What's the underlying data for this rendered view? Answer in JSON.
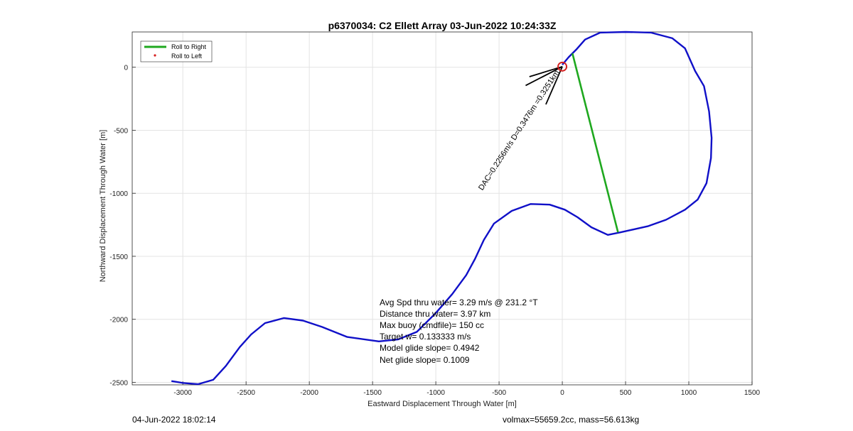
{
  "chart_data": {
    "type": "line",
    "title": "p6370034: C2 Ellett Array 03-Jun-2022 10:24:33Z",
    "xlabel": "Eastward Displacement Through Water [m]",
    "ylabel": "Northward Displacement Through Water [m]",
    "xlim": [
      -3400,
      1500
    ],
    "ylim": [
      -2520,
      280
    ],
    "xticks": [
      -3000,
      -2500,
      -2000,
      -1500,
      -1000,
      -500,
      0,
      500,
      1000,
      1500
    ],
    "yticks": [
      -2500,
      -2000,
      -1500,
      -1000,
      -500,
      0
    ],
    "grid": true,
    "legend": {
      "placement": "top-left",
      "entries": [
        {
          "label": "Roll to Right",
          "color": "#1fa81f",
          "marker": "line"
        },
        {
          "label": "Roll to Left",
          "color": "#d62020",
          "marker": "dot"
        }
      ]
    },
    "series": [
      {
        "color": "#1010c8",
        "points": [
          [
            -3090,
            -2490
          ],
          [
            -3000,
            -2505
          ],
          [
            -2880,
            -2515
          ],
          [
            -2760,
            -2480
          ],
          [
            -2660,
            -2370
          ],
          [
            -2550,
            -2220
          ],
          [
            -2460,
            -2120
          ],
          [
            -2350,
            -2030
          ],
          [
            -2200,
            -1990
          ],
          [
            -2050,
            -2010
          ],
          [
            -1900,
            -2060
          ],
          [
            -1700,
            -2140
          ],
          [
            -1450,
            -2175
          ],
          [
            -1300,
            -2160
          ],
          [
            -1150,
            -2100
          ],
          [
            -1000,
            -1950
          ],
          [
            -870,
            -1800
          ],
          [
            -760,
            -1650
          ],
          [
            -690,
            -1520
          ],
          [
            -620,
            -1370
          ],
          [
            -540,
            -1240
          ],
          [
            -400,
            -1140
          ],
          [
            -250,
            -1085
          ],
          [
            -100,
            -1090
          ],
          [
            20,
            -1130
          ],
          [
            120,
            -1190
          ],
          [
            230,
            -1270
          ],
          [
            360,
            -1330
          ],
          [
            460,
            -1310
          ],
          [
            680,
            -1260
          ],
          [
            820,
            -1210
          ],
          [
            970,
            -1130
          ],
          [
            1070,
            -1050
          ],
          [
            1140,
            -920
          ],
          [
            1175,
            -720
          ],
          [
            1180,
            -560
          ],
          [
            1160,
            -350
          ],
          [
            1120,
            -150
          ],
          [
            1050,
            -30
          ],
          [
            970,
            150
          ],
          [
            870,
            230
          ],
          [
            700,
            275
          ],
          [
            500,
            280
          ],
          [
            300,
            275
          ],
          [
            180,
            220
          ],
          [
            110,
            140
          ],
          [
            50,
            80
          ],
          [
            0,
            20
          ]
        ]
      },
      {
        "color": "#1fa81f",
        "points": [
          [
            80,
            110
          ],
          [
            440,
            -1310
          ]
        ]
      }
    ],
    "current_position": [
      0,
      5
    ],
    "current_position_color": "#d62020",
    "depth_average_vectors": [
      {
        "dx": -290,
        "dy": -150
      },
      {
        "dx": -130,
        "dy": -300
      },
      {
        "dx": -260,
        "dy": -80
      }
    ],
    "annotation_text": "DAC=0.2256m/s D=0.3476m =0.3251km",
    "stats": [
      "Avg Spd thru water=  3.29 m/s @ 231.2 °T",
      "Distance thru water=  3.97 km",
      "Max buoy (cmdfile)= 150 cc",
      "Target w= 0.133333 m/s",
      "Model glide slope= 0.4942",
      "Net glide slope= 0.1009"
    ]
  },
  "footer": {
    "left": "04-Jun-2022 18:02:14",
    "right": "volmax=55659.2cc, mass=56.613kg"
  }
}
